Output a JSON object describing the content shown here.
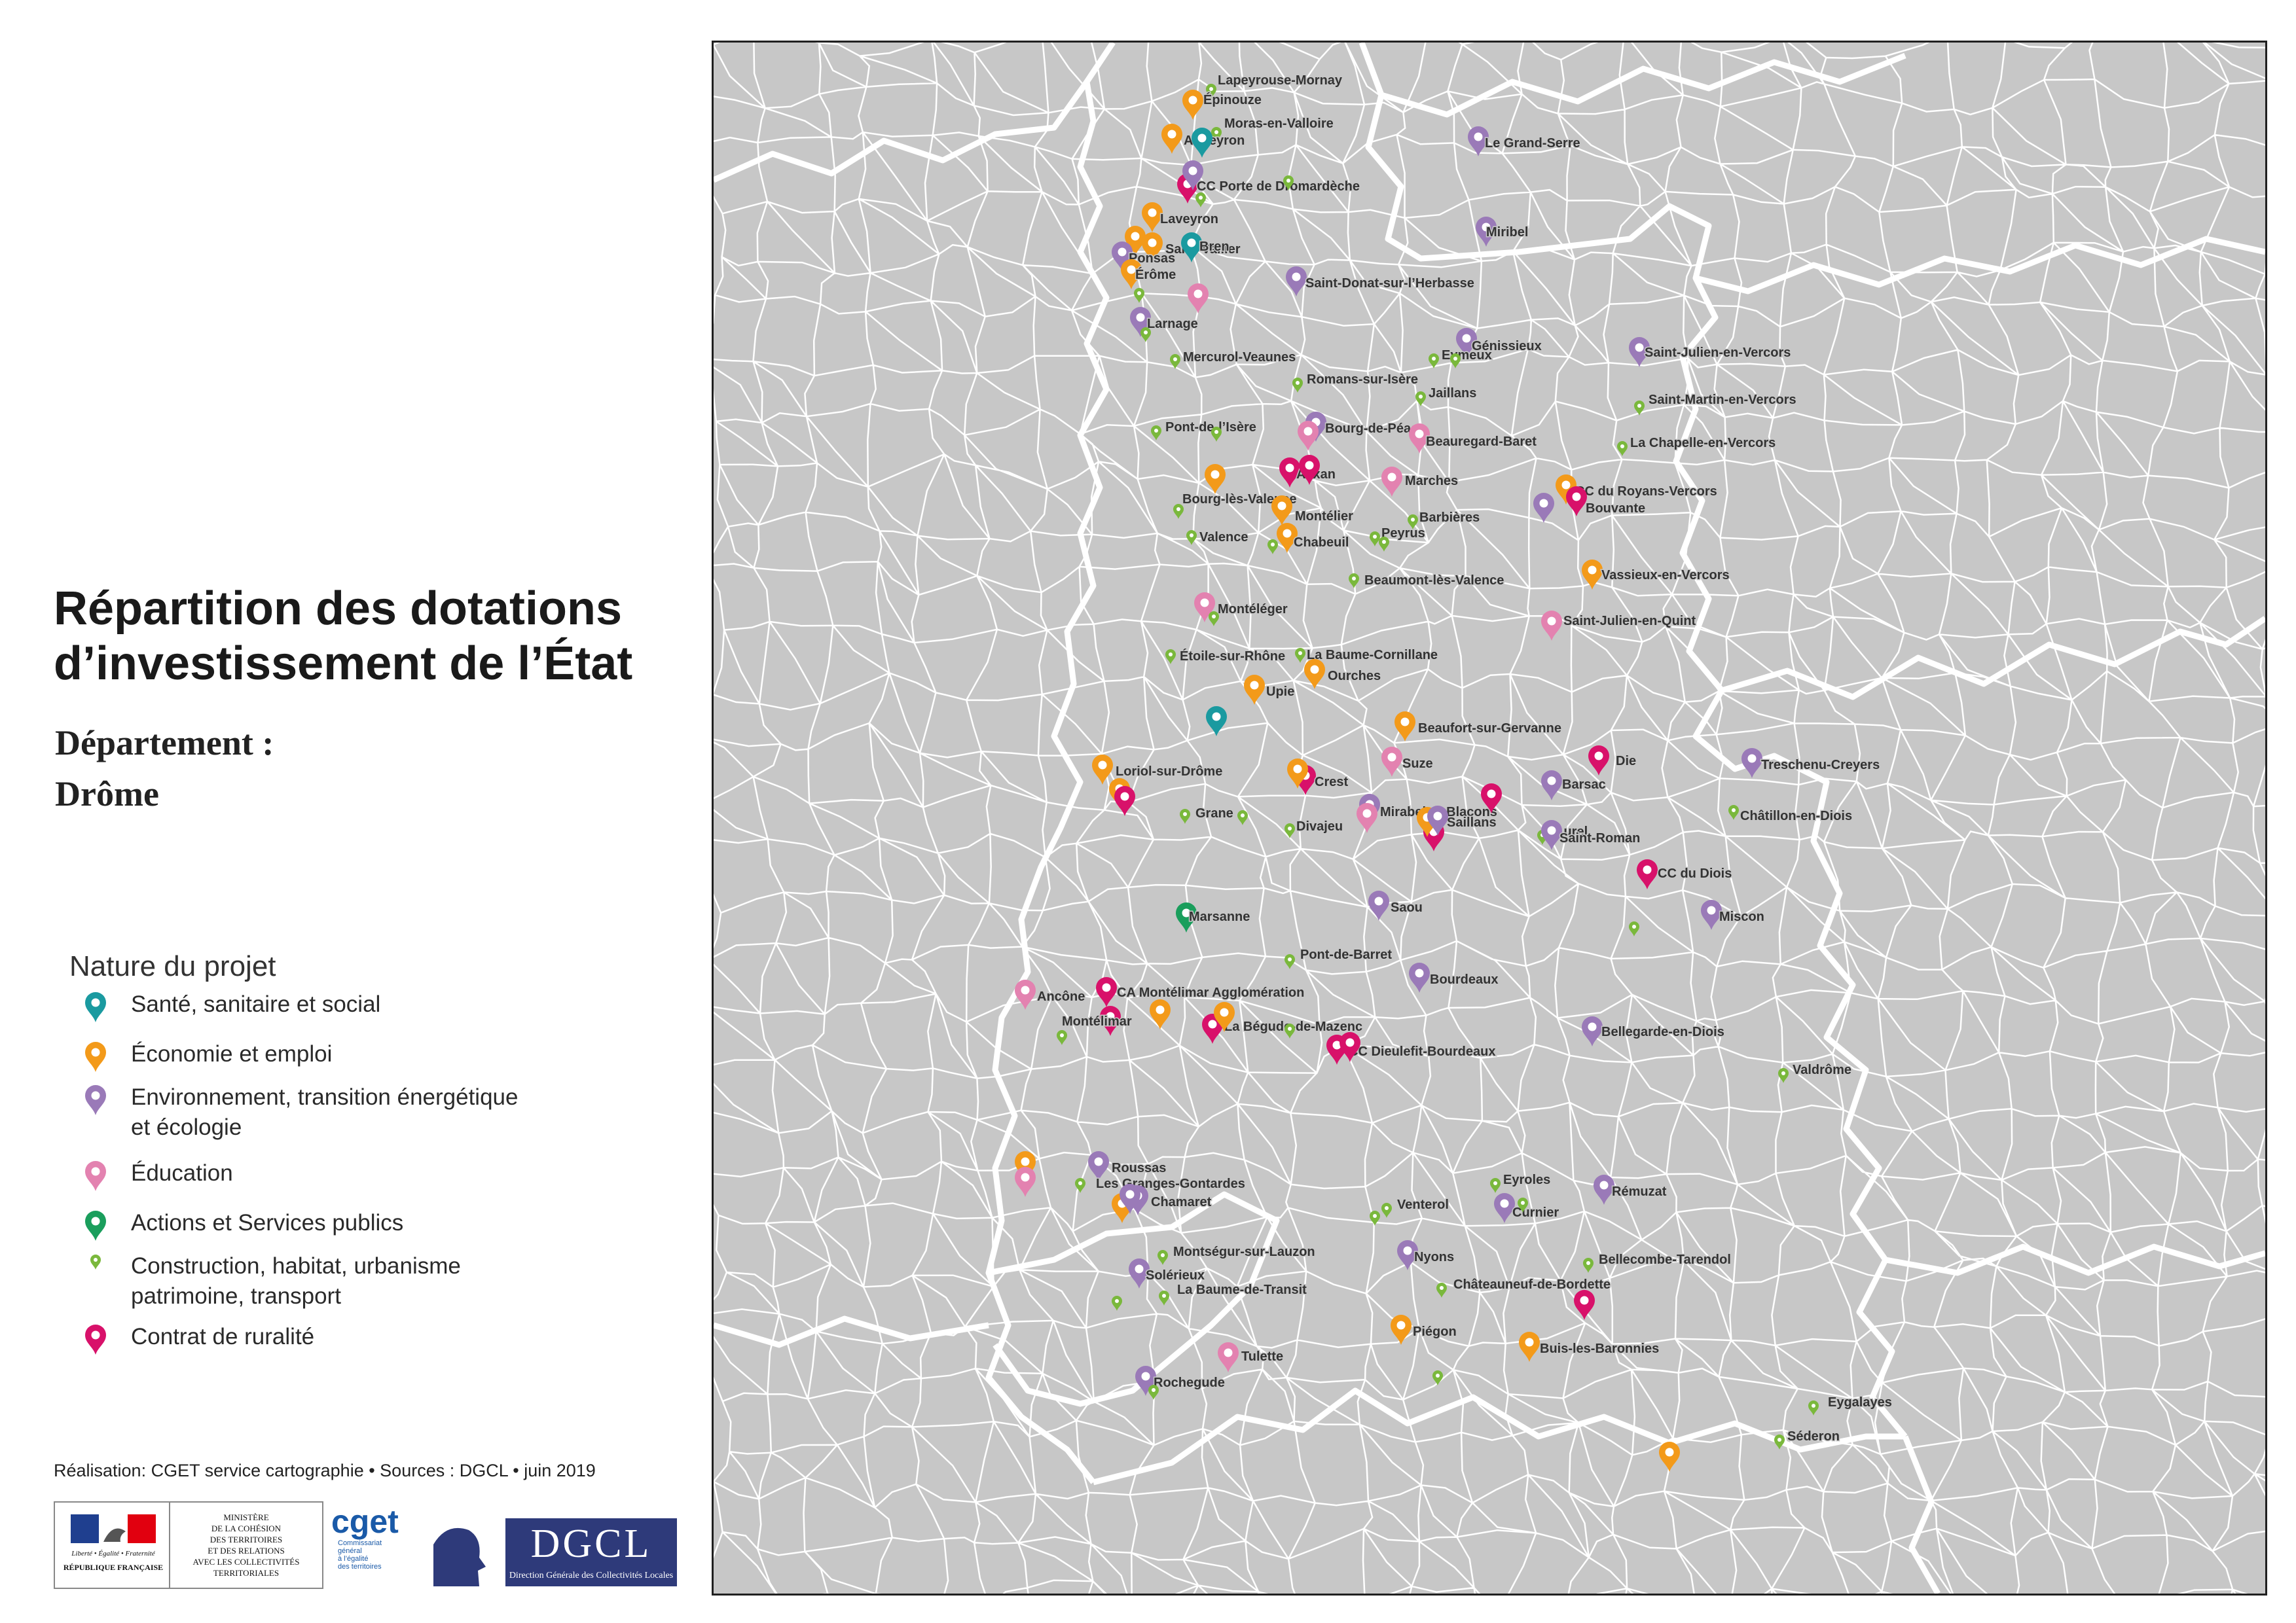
{
  "title_line1": "Répartition des dotations",
  "title_line2": "d’investissement de l’État",
  "subtitle_label": "Département :",
  "department": "Drôme",
  "legend": {
    "title": "Nature du projet",
    "items": [
      {
        "label": "Santé, sanitaire et social",
        "color": "#1a9aa0",
        "icon": "map-pin-icon"
      },
      {
        "label": "Économie et emploi",
        "color": "#f39a1a",
        "icon": "map-pin-icon"
      },
      {
        "label": "Environnement, transition énergétique\net écologie",
        "color": "#9a7ab8",
        "icon": "map-pin-icon"
      },
      {
        "label": "Éducation",
        "color": "#e382b0",
        "icon": "map-pin-icon"
      },
      {
        "label": "Actions et Services publics",
        "color": "#1a9e5c",
        "icon": "map-pin-icon"
      },
      {
        "label": "Construction, habitat, urbanisme\npatrimoine, transport",
        "color": "#7ab83c",
        "icon": "small-pin-icon"
      },
      {
        "label": "Contrat de ruralité",
        "color": "#d8116a",
        "icon": "map-pin-icon"
      }
    ]
  },
  "credits": "Réalisation: CGET service cartographie • Sources : DGCL • juin 2019",
  "logos": {
    "rf_line1": "Liberté • Égalité • Fraternité",
    "rf_line2": "RÉPUBLIQUE FRANÇAISE",
    "ministry": "MINISTÈRE\nDE LA COHÉSION\nDES TERRITOIRES\nET DES RELATIONS\nAVEC LES COLLECTIVITÉS\nTERRITORIALES",
    "cget": "cget",
    "cget_sub": "Commissariat\ngénéral\nà l’égalité\ndes territoires",
    "dgcl": "DGCL",
    "dgcl_sub": "Direction Générale des Collectivités Locales"
  },
  "places": [
    {
      "name": "Lapeyrouse-Mornay",
      "cat": 5,
      "label": "Lapeyrouse-Mornay"
    },
    {
      "name": "Épinouze",
      "cat": 1,
      "label": "Épinouze"
    },
    {
      "name": "Moras-en-Valloire",
      "cat": 5,
      "label": "Moras-en-Valloire"
    },
    {
      "name": "Anneyron",
      "cat": 1,
      "label": "Anneyron"
    },
    {
      "name": "Anneyron-sante",
      "cat": 0,
      "label": ""
    },
    {
      "name": "Le Grand-Serre",
      "cat": 2,
      "label": "Le Grand-Serre"
    },
    {
      "name": "CC Porte de Dromardèche",
      "cat": 6,
      "label": "CC Porte de Dromardèche"
    },
    {
      "name": "CC Porte de Dromardèche-env",
      "cat": 2,
      "label": ""
    },
    {
      "name": "Porte-constr",
      "cat": 5,
      "label": ""
    },
    {
      "name": "GrandSerre-constr",
      "cat": 5,
      "label": ""
    },
    {
      "name": "Laveyron",
      "cat": 1,
      "label": "Laveyron"
    },
    {
      "name": "Miribel",
      "cat": 2,
      "label": "Miribel"
    },
    {
      "name": "Saint-Vallier",
      "cat": 1,
      "label": "Saint-Vallier"
    },
    {
      "name": "Saint-Vallier-2",
      "cat": 1,
      "label": ""
    },
    {
      "name": "Ponsas",
      "cat": 2,
      "label": "Ponsas"
    },
    {
      "name": "Bren",
      "cat": 0,
      "label": "Bren"
    },
    {
      "name": "Érôme",
      "cat": 1,
      "label": "Érôme"
    },
    {
      "name": "Saint-Donat-sur-l’Herbasse",
      "cat": 2,
      "label": "Saint-Donat-sur-l’Herbasse"
    },
    {
      "name": "Erome-constr",
      "cat": 5,
      "label": ""
    },
    {
      "name": "Larnage-edu",
      "cat": 3,
      "label": ""
    },
    {
      "name": "Larnage",
      "cat": 2,
      "label": "Larnage"
    },
    {
      "name": "Larnage-constr",
      "cat": 5,
      "label": ""
    },
    {
      "name": "Génissieux",
      "cat": 2,
      "label": "Génissieux"
    },
    {
      "name": "Mercurol-Veaunes",
      "cat": 5,
      "label": "Mercurol-Veaunes"
    },
    {
      "name": "Eymeux",
      "cat": 5,
      "label": "Eymeux"
    },
    {
      "name": "Eymeux-2",
      "cat": 5,
      "label": ""
    },
    {
      "name": "Saint-Julien-en-Vercors",
      "cat": 2,
      "label": "Saint-Julien-en-Vercors"
    },
    {
      "name": "Romans-sur-Isère",
      "cat": 5,
      "label": "Romans-sur-Isère"
    },
    {
      "name": "Jaillans",
      "cat": 5,
      "label": "Jaillans"
    },
    {
      "name": "Saint-Martin-en-Vercors",
      "cat": 5,
      "label": "Saint-Martin-en-Vercors"
    },
    {
      "name": "Pont-de-l’Isère",
      "cat": 5,
      "label": "Pont-de-l’Isère"
    },
    {
      "name": "Pont-constr-2",
      "cat": 5,
      "label": ""
    },
    {
      "name": "Bourg-de-Péage",
      "cat": 2,
      "label": "Bourg-de-Péage"
    },
    {
      "name": "Bourg-de-Péage-edu",
      "cat": 3,
      "label": ""
    },
    {
      "name": "Beauregard-Baret",
      "cat": 3,
      "label": "Beauregard-Baret"
    },
    {
      "name": "Alixan",
      "cat": 6,
      "label": "Alixan"
    },
    {
      "name": "Alixan-2",
      "cat": 6,
      "label": ""
    },
    {
      "name": "La Chapelle-en-Vercors",
      "cat": 5,
      "label": "La Chapelle-en-Vercors"
    },
    {
      "name": "Marches",
      "cat": 3,
      "label": "Marches"
    },
    {
      "name": "Bourg-lès-Valence",
      "cat": 1,
      "label": "Bourg-lès-Valence"
    },
    {
      "name": "CC du Royans-Vercors",
      "cat": 1,
      "label": "CC du Royans-Vercors"
    },
    {
      "name": "Bouvante",
      "cat": 6,
      "label": "Bouvante"
    },
    {
      "name": "Bouvante-env",
      "cat": 2,
      "label": ""
    },
    {
      "name": "Bourg-constr",
      "cat": 5,
      "label": ""
    },
    {
      "name": "Montélier",
      "cat": 1,
      "label": "Montélier"
    },
    {
      "name": "Barbières",
      "cat": 5,
      "label": "Barbières"
    },
    {
      "name": "Valence",
      "cat": 5,
      "label": "Valence"
    },
    {
      "name": "Chabeuil",
      "cat": 1,
      "label": "Chabeuil"
    },
    {
      "name": "Chabeuil-constr",
      "cat": 5,
      "label": ""
    },
    {
      "name": "Peyrus",
      "cat": 5,
      "label": "Peyrus"
    },
    {
      "name": "Peyrus-2",
      "cat": 5,
      "label": ""
    },
    {
      "name": "Vassieux-en-Vercors",
      "cat": 1,
      "label": "Vassieux-en-Vercors"
    },
    {
      "name": "Beaumont-lès-Valence",
      "cat": 5,
      "label": "Beaumont-lès-Valence"
    },
    {
      "name": "Montéléger",
      "cat": 3,
      "label": "Montéléger"
    },
    {
      "name": "Monteleger-constr",
      "cat": 5,
      "label": ""
    },
    {
      "name": "Saint-Julien-en-Quint",
      "cat": 3,
      "label": "Saint-Julien-en-Quint"
    },
    {
      "name": "Étoile-sur-Rhône",
      "cat": 5,
      "label": "Étoile-sur-Rhône"
    },
    {
      "name": "La Baume-Cornillane",
      "cat": 5,
      "label": "La Baume-Cornillane"
    },
    {
      "name": "Ourches",
      "cat": 1,
      "label": "Ourches"
    },
    {
      "name": "Upie",
      "cat": 1,
      "label": "Upie"
    },
    {
      "name": "Upie-sante",
      "cat": 0,
      "label": ""
    },
    {
      "name": "Beaufort-sur-Gervanne",
      "cat": 1,
      "label": "Beaufort-sur-Gervanne"
    },
    {
      "name": "Suze",
      "cat": 3,
      "label": "Suze"
    },
    {
      "name": "Die",
      "cat": 6,
      "label": "Die"
    },
    {
      "name": "Treschenu-Creyers",
      "cat": 2,
      "label": "Treschenu-Creyers"
    },
    {
      "name": "Loriol-sur-Drôme",
      "cat": 1,
      "label": "Loriol-sur-Drôme"
    },
    {
      "name": "Crest",
      "cat": 6,
      "label": "Crest"
    },
    {
      "name": "Crest-eco",
      "cat": 1,
      "label": ""
    },
    {
      "name": "Barsac",
      "cat": 2,
      "label": "Barsac"
    },
    {
      "name": "Grane",
      "cat": 5,
      "label": "Grane"
    },
    {
      "name": "Mirabel-et-Blacons",
      "cat": 2,
      "label": "Mirabel-et-Blacons"
    },
    {
      "name": "Châtillon-en-Diois",
      "cat": 5,
      "label": "Châtillon-en-Diois"
    },
    {
      "name": "Loriol-eco-2",
      "cat": 1,
      "label": ""
    },
    {
      "name": "Loriol-rural",
      "cat": 6,
      "label": ""
    },
    {
      "name": "Grane-constr",
      "cat": 5,
      "label": ""
    },
    {
      "name": "Divajeu",
      "cat": 5,
      "label": "Divajeu"
    },
    {
      "name": "Mirabel-edu",
      "cat": 3,
      "label": ""
    },
    {
      "name": "Saillans",
      "cat": 6,
      "label": "Saillans"
    },
    {
      "name": "Saillans-eco",
      "cat": 1,
      "label": ""
    },
    {
      "name": "Saillans-env",
      "cat": 2,
      "label": ""
    },
    {
      "name": "Saillans-rural",
      "cat": 6,
      "label": ""
    },
    {
      "name": "Aurel",
      "cat": 5,
      "label": "Aurel"
    },
    {
      "name": "Saint-Roman",
      "cat": 2,
      "label": "Saint-Roman"
    },
    {
      "name": "CC du Diois",
      "cat": 6,
      "label": "CC du Diois"
    },
    {
      "name": "Marsanne",
      "cat": 4,
      "label": "Marsanne"
    },
    {
      "name": "Saou",
      "cat": 2,
      "label": "Saou"
    },
    {
      "name": "Miscon",
      "cat": 2,
      "label": "Miscon"
    },
    {
      "name": "Diois-constr",
      "cat": 5,
      "label": ""
    },
    {
      "name": "Pont-de-Barret",
      "cat": 5,
      "label": "Pont-de-Barret"
    },
    {
      "name": "Bourdeaux",
      "cat": 2,
      "label": "Bourdeaux"
    },
    {
      "name": "Ancône",
      "cat": 3,
      "label": "Ancône"
    },
    {
      "name": "CA Montélimar Agglomération",
      "cat": 6,
      "label": "CA Montélimar Agglomération"
    },
    {
      "name": "Montélimar",
      "cat": 6,
      "label": "Montélimar"
    },
    {
      "name": "Montelimar-eco",
      "cat": 1,
      "label": ""
    },
    {
      "name": "Montelimar-constr",
      "cat": 5,
      "label": ""
    },
    {
      "name": "La Bégude-de-Mazenc",
      "cat": 6,
      "label": "La Bégude-de-Mazenc"
    },
    {
      "name": "Begude-eco",
      "cat": 1,
      "label": ""
    },
    {
      "name": "Begude-constr",
      "cat": 5,
      "label": ""
    },
    {
      "name": "Bellegarde-en-Diois",
      "cat": 2,
      "label": "Bellegarde-en-Diois"
    },
    {
      "name": "CC Dieulefit-Bourdeaux",
      "cat": 6,
      "label": "CC Dieulefit-Bourdeaux"
    },
    {
      "name": "Dieulefit-rural",
      "cat": 6,
      "label": ""
    },
    {
      "name": "Valdrôme",
      "cat": 5,
      "label": "Valdrôme"
    },
    {
      "name": "Roussas",
      "cat": 2,
      "label": "Roussas"
    },
    {
      "name": "Les Granges-Gontardes",
      "cat": 5,
      "label": "Les Granges-Gontardes"
    },
    {
      "name": "Pierrelatte-eco",
      "cat": 1,
      "label": ""
    },
    {
      "name": "Pierrelatte-edu",
      "cat": 3,
      "label": ""
    },
    {
      "name": "Eyroles",
      "cat": 5,
      "label": "Eyroles"
    },
    {
      "name": "Rémuzat",
      "cat": 2,
      "label": "Rémuzat"
    },
    {
      "name": "Venterol",
      "cat": 5,
      "label": "Venterol"
    },
    {
      "name": "Venterol-2",
      "cat": 5,
      "label": ""
    },
    {
      "name": "Chamaret",
      "cat": 2,
      "label": "Chamaret"
    },
    {
      "name": "Chamaret-eco",
      "cat": 1,
      "label": ""
    },
    {
      "name": "Chamaret-env",
      "cat": 2,
      "label": ""
    },
    {
      "name": "Curnier",
      "cat": 2,
      "label": "Curnier"
    },
    {
      "name": "Curnier-constr",
      "cat": 5,
      "label": ""
    },
    {
      "name": "Montségur-sur-Lauzon",
      "cat": 5,
      "label": "Montségur-sur-Lauzon"
    },
    {
      "name": "Nyons",
      "cat": 2,
      "label": "Nyons"
    },
    {
      "name": "Bellecombe-Tarendol",
      "cat": 5,
      "label": "Bellecombe-Tarendol"
    },
    {
      "name": "Solérieux",
      "cat": 2,
      "label": "Solérieux"
    },
    {
      "name": "Châteauneuf-de-Bordette",
      "cat": 5,
      "label": "Châteauneuf-de-Bordette"
    },
    {
      "name": "La Baume-de-Transit",
      "cat": 5,
      "label": "La Baume-de-Transit"
    },
    {
      "name": "Baume-constr-2",
      "cat": 5,
      "label": ""
    },
    {
      "name": "Buis-rural",
      "cat": 6,
      "label": ""
    },
    {
      "name": "Piégon",
      "cat": 1,
      "label": "Piégon"
    },
    {
      "name": "Tulette",
      "cat": 3,
      "label": "Tulette"
    },
    {
      "name": "Buis-les-Baronnies",
      "cat": 1,
      "label": "Buis-les-Baronnies"
    },
    {
      "name": "Piegon-constr",
      "cat": 5,
      "label": ""
    },
    {
      "name": "Rochegude",
      "cat": 2,
      "label": "Rochegude"
    },
    {
      "name": "Rochegude-constr",
      "cat": 5,
      "label": ""
    },
    {
      "name": "Eygalayes",
      "cat": 5,
      "label": "Eygalayes"
    },
    {
      "name": "Séderon",
      "cat": 5,
      "label": "Séderon"
    },
    {
      "name": "Sederon-eco",
      "cat": 1,
      "label": ""
    }
  ]
}
